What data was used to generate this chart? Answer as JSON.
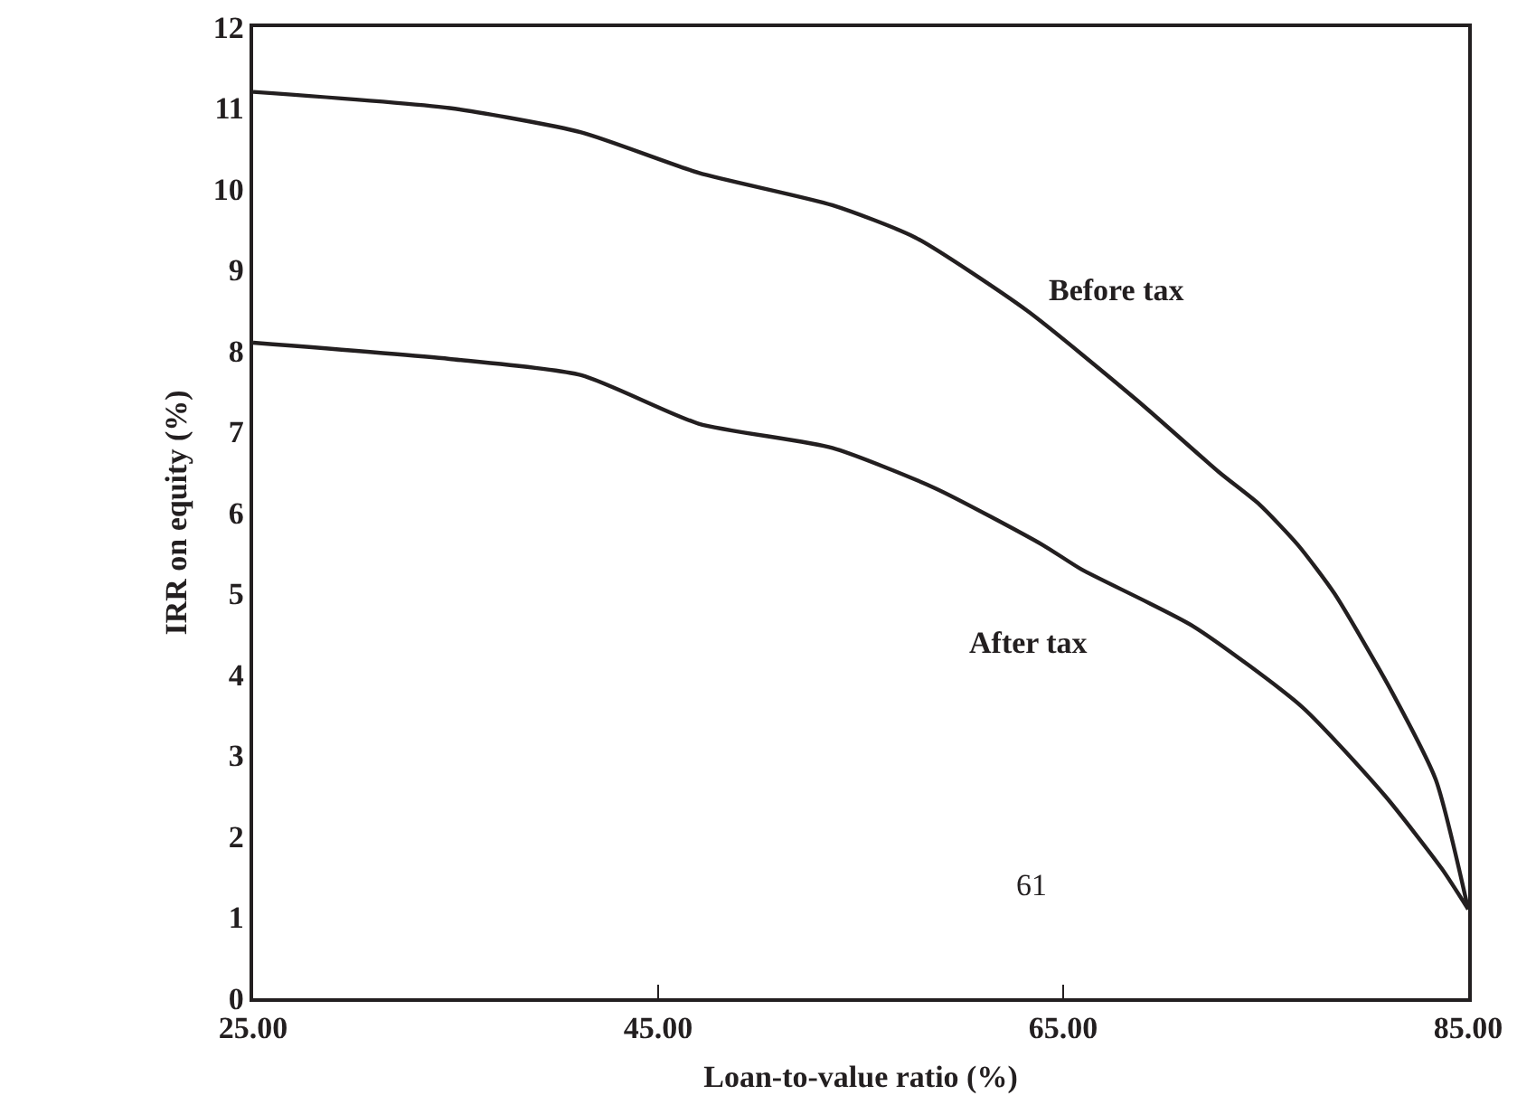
{
  "chart_data": {
    "type": "line",
    "xlabel": "Loan-to-value ratio (%)",
    "ylabel": "IRR on equity (%)",
    "xlim": [
      25,
      85
    ],
    "xticks": [
      {
        "value": 25,
        "label": "25.00"
      },
      {
        "value": 45,
        "label": "45.00"
      },
      {
        "value": 65,
        "label": "65.00"
      },
      {
        "value": 85,
        "label": "85.00"
      }
    ],
    "ylim": [
      0,
      12
    ],
    "yticks": [
      0,
      1,
      2,
      3,
      4,
      5,
      6,
      7,
      8,
      9,
      10,
      11,
      12
    ],
    "grid": false,
    "legend": false,
    "marker": "none",
    "line_style": "solid",
    "series": [
      {
        "name": "Before tax",
        "color": "#231f20",
        "x": [
          25,
          34.7,
          41.2,
          47.0,
          53.6,
          57.7,
          63.2,
          68.6,
          72.7,
          74.7,
          76.6,
          78.4,
          81.2,
          83.4,
          85
        ],
        "values": [
          11.2,
          11.0,
          10.7,
          10.2,
          9.8,
          9.4,
          8.5,
          7.4,
          6.5,
          6.1,
          5.6,
          5.0,
          3.8,
          2.7,
          1.1
        ]
      },
      {
        "name": "After tax",
        "color": "#231f20",
        "x": [
          25,
          34.7,
          41.2,
          47.0,
          53.6,
          58.7,
          64.0,
          65.9,
          71.4,
          76.8,
          80.9,
          83.7,
          85
        ],
        "values": [
          8.1,
          7.9,
          7.7,
          7.1,
          6.8,
          6.3,
          5.6,
          5.3,
          4.6,
          3.6,
          2.5,
          1.6,
          1.1
        ]
      }
    ],
    "annotations": [
      "61"
    ]
  }
}
